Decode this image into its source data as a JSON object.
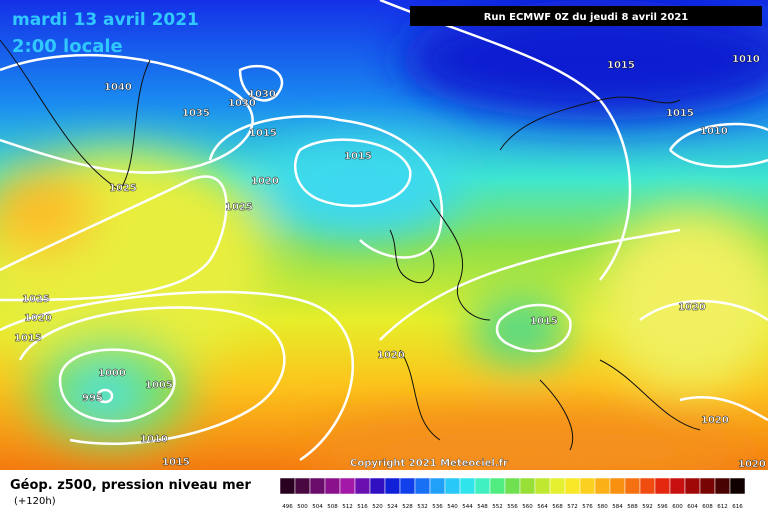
{
  "header": {
    "date": "mardi 13 avril 2021",
    "time": "2:00 locale",
    "run": "Run ECMWF 0Z du jeudi 8 avril 2021"
  },
  "map": {
    "isobar_labels": [
      1040,
      1035,
      1030,
      1030,
      1015,
      1015,
      1025,
      1020,
      1025,
      1015,
      1010,
      1015,
      1010,
      1025,
      1020,
      1015,
      1015,
      1020,
      1020,
      1000,
      1005,
      995,
      1010,
      1015,
      1020,
      1020
    ],
    "copyright": "Copyright 2021 Meteociel.fr"
  },
  "legend": {
    "title": "Géop. z500, pression niveau mer",
    "lead": "(+120h)",
    "scale": [
      496,
      500,
      504,
      508,
      512,
      516,
      520,
      524,
      528,
      532,
      536,
      540,
      544,
      548,
      552,
      556,
      560,
      564,
      568,
      572,
      576,
      580,
      584,
      588,
      592,
      596,
      600,
      604,
      608,
      612,
      616
    ]
  }
}
